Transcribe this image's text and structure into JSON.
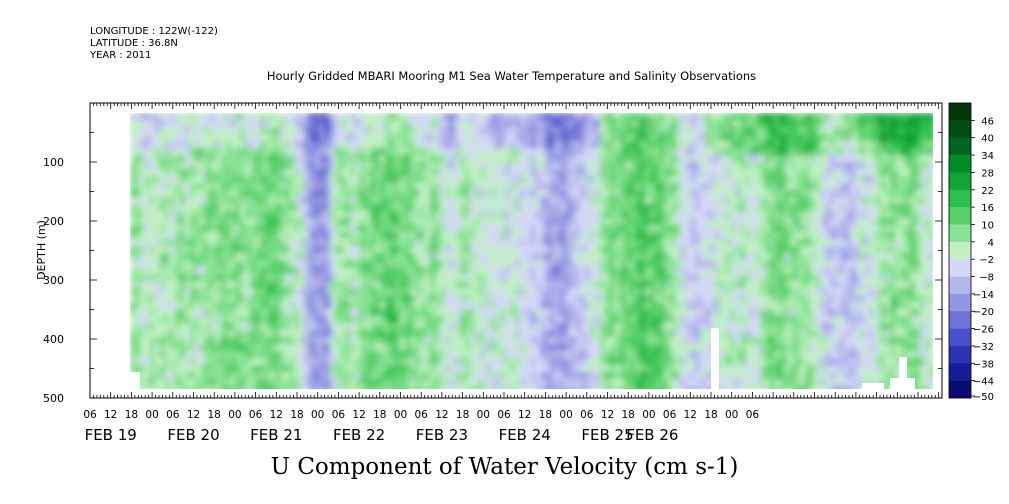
{
  "header": {
    "longitude": "LONGITUDE : 122W(-122)",
    "latitude": "LATITUDE : 36.8N",
    "year": "YEAR : 2011"
  },
  "chart_data": {
    "type": "heatmap",
    "title": "Hourly Gridded MBARI Mooring M1 Sea Water Temperature and Salinity Observations",
    "bottom_title": "U Component of Water Velocity (cm s-1)",
    "ylabel": "DEPTH (m)",
    "ylim": [
      500,
      0
    ],
    "y_ticks": [
      100,
      200,
      300,
      400,
      500
    ],
    "x_hour_ticks": [
      "06",
      "12",
      "18",
      "00",
      "06",
      "12",
      "18",
      "00",
      "06",
      "12",
      "18",
      "00",
      "06",
      "12",
      "18",
      "00",
      "06",
      "12",
      "18",
      "00",
      "06",
      "12",
      "18",
      "00",
      "06",
      "12",
      "18",
      "00",
      "06",
      "12",
      "18",
      "00",
      "06"
    ],
    "x_day_labels": [
      "FEB 19",
      "FEB 20",
      "FEB 21",
      "FEB 22",
      "FEB 23",
      "FEB 24",
      "FEB 25",
      "FEB 26"
    ],
    "colorbar": {
      "levels": [
        46,
        40,
        34,
        28,
        22,
        16,
        10,
        4,
        -2,
        -8,
        -14,
        -20,
        -26,
        -32,
        -38,
        -44,
        -50
      ],
      "colors": [
        "#00380a",
        "#004d14",
        "#00661e",
        "#008a2a",
        "#12a638",
        "#2ec04e",
        "#5ad06c",
        "#8ae294",
        "#c0f0c4",
        "#d4d8f6",
        "#b4b6ec",
        "#9497e2",
        "#6f73d6",
        "#4b51c8",
        "#2d33b3",
        "#171d96",
        "#080e6e"
      ]
    },
    "field_summary": "Mixed positive (green, roughly 4 to 20 cm/s) and negative (blue, roughly -2 to -20 cm/s) values from FEB 19 12h to FEB 26 06h over 20-485 m depth; stronger positive values near surface after FEB 24."
  }
}
